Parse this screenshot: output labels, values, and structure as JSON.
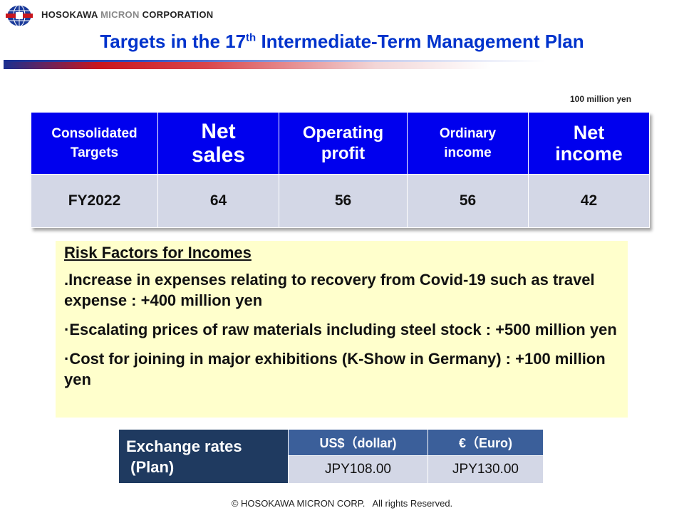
{
  "header": {
    "company_bold": "HOSOKAWA",
    "company_micron": "MICRON",
    "company_corp": "CORPORATION",
    "title_pre": "Targets in the 17",
    "title_sup": "th",
    "title_post": " Intermediate-Term Management Plan"
  },
  "unit": "100 million yen",
  "targets": {
    "header_label_line1": "Consolidated",
    "header_label_line2": "Targets",
    "col_net_sales_1": "Net",
    "col_net_sales_2": "sales",
    "col_operating_1": "Operating",
    "col_operating_2": "profit",
    "col_ordinary_1": "Ordinary",
    "col_ordinary_2": "income",
    "col_net_income_1": "Net",
    "col_net_income_2": "income",
    "row_label": "FY2022",
    "net_sales": "64",
    "operating_profit": "56",
    "ordinary_income": "56",
    "net_income": "42"
  },
  "risk": {
    "title": "Risk Factors for Incomes",
    "items": [
      ".Increase in expenses relating to recovery from Covid-19 such as travel expense : +400 million yen",
      "·Escalating prices of raw materials including steel stock : +500 million yen",
      "·Cost for joining in major exhibitions (K-Show in Germany) : +100 million yen"
    ]
  },
  "exchange": {
    "label_line1": "Exchange rates",
    "label_line2": " (Plan)",
    "usd_head": "US$（dollar)",
    "eur_head": "€（Euro)",
    "usd_value": "JPY108.00",
    "eur_value": "JPY130.00"
  },
  "footer": {
    "copyright": "© HOSOKAWA MICRON CORP.   All rights Reserved."
  },
  "colors": {
    "title_blue": "#0033cc",
    "table_header_blue": "#0000ee",
    "table_row_gray": "#d3d7e6",
    "risk_yellow": "#ffffcc",
    "fx_dark_navy": "#1f3a60",
    "fx_head_blue": "#3b5f9a"
  },
  "icons": {
    "logo": "globe-logo-icon"
  }
}
